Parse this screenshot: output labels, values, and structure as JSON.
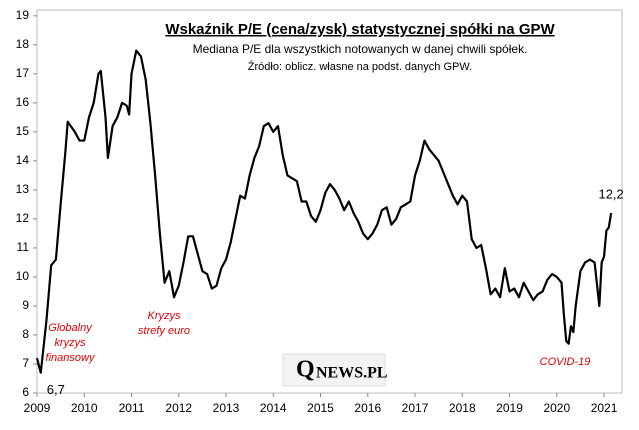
{
  "chart_data": {
    "type": "line",
    "title": "Wskaźnik P/E (cena/zysk) statystycznej spółki na GPW",
    "subtitle": "Mediana P/E dla wszystkich notowanych w danej chwili spółek.",
    "source": "Źródło: oblicz. własne na podst. danych GPW.",
    "annotations": [
      [
        "Globalny",
        "kryzys",
        "finansowy"
      ],
      [
        "Kryzys",
        "strefy euro"
      ],
      [
        "COVID-19"
      ]
    ],
    "annotation_color": "#e00000",
    "logo": {
      "initial": "Q",
      "rest": "NEWS.PL"
    },
    "xlim": [
      2009,
      2021.38
    ],
    "xticks": [
      2009,
      2010,
      2011,
      2012,
      2013,
      2014,
      2015,
      2016,
      2017,
      2018,
      2019,
      2020,
      2021
    ],
    "ylim": [
      6,
      19.2
    ],
    "yticks": [
      6,
      7,
      8,
      9,
      10,
      11,
      12,
      13,
      14,
      15,
      16,
      17,
      18,
      19
    ],
    "grid": false,
    "series": [
      {
        "color": "#000000",
        "x": [
          2009.0,
          2009.08,
          2009.2,
          2009.3,
          2009.4,
          2009.5,
          2009.6,
          2009.65,
          2009.8,
          2009.9,
          2010.0,
          2010.1,
          2010.2,
          2010.3,
          2010.35,
          2010.45,
          2010.5,
          2010.6,
          2010.7,
          2010.8,
          2010.9,
          2010.95,
          2011.0,
          2011.1,
          2011.2,
          2011.3,
          2011.4,
          2011.5,
          2011.6,
          2011.7,
          2011.8,
          2011.9,
          2012.0,
          2012.1,
          2012.2,
          2012.3,
          2012.4,
          2012.5,
          2012.6,
          2012.7,
          2012.8,
          2012.9,
          2013.0,
          2013.1,
          2013.2,
          2013.3,
          2013.4,
          2013.5,
          2013.6,
          2013.7,
          2013.8,
          2013.9,
          2014.0,
          2014.1,
          2014.2,
          2014.3,
          2014.4,
          2014.5,
          2014.6,
          2014.7,
          2014.8,
          2014.9,
          2015.0,
          2015.1,
          2015.2,
          2015.3,
          2015.4,
          2015.5,
          2015.6,
          2015.7,
          2015.8,
          2015.9,
          2016.0,
          2016.1,
          2016.2,
          2016.3,
          2016.4,
          2016.5,
          2016.6,
          2016.7,
          2016.8,
          2016.9,
          2017.0,
          2017.1,
          2017.2,
          2017.3,
          2017.4,
          2017.5,
          2017.6,
          2017.7,
          2017.8,
          2017.9,
          2018.0,
          2018.1,
          2018.2,
          2018.3,
          2018.4,
          2018.5,
          2018.6,
          2018.7,
          2018.8,
          2018.9,
          2019.0,
          2019.1,
          2019.2,
          2019.3,
          2019.4,
          2019.5,
          2019.6,
          2019.7,
          2019.8,
          2019.9,
          2020.0,
          2020.1,
          2020.15,
          2020.2,
          2020.25,
          2020.3,
          2020.35,
          2020.4,
          2020.5,
          2020.6,
          2020.7,
          2020.8,
          2020.9,
          2020.95,
          2021.0,
          2021.05,
          2021.1,
          2021.15
        ],
        "values": [
          7.2,
          6.7,
          8.5,
          10.4,
          10.6,
          12.5,
          14.3,
          15.35,
          15.0,
          14.7,
          14.7,
          15.5,
          16.0,
          17.0,
          17.1,
          15.5,
          14.1,
          15.2,
          15.5,
          16.0,
          15.9,
          15.6,
          17.0,
          17.8,
          17.6,
          16.8,
          15.3,
          13.5,
          11.5,
          9.8,
          10.2,
          9.3,
          9.7,
          10.5,
          11.4,
          11.4,
          10.8,
          10.2,
          10.1,
          9.6,
          9.7,
          10.3,
          10.6,
          11.2,
          12.0,
          12.8,
          12.7,
          13.5,
          14.1,
          14.5,
          15.2,
          15.3,
          15.0,
          15.2,
          14.2,
          13.5,
          13.4,
          13.3,
          12.6,
          12.6,
          12.1,
          11.9,
          12.3,
          12.9,
          13.2,
          13.0,
          12.7,
          12.3,
          12.6,
          12.2,
          11.9,
          11.5,
          11.3,
          11.5,
          11.8,
          12.3,
          12.4,
          11.8,
          12.0,
          12.4,
          12.5,
          12.6,
          13.5,
          14.0,
          14.7,
          14.4,
          14.2,
          14.0,
          13.6,
          13.2,
          12.8,
          12.5,
          12.8,
          12.6,
          11.3,
          11.0,
          11.1,
          10.3,
          9.4,
          9.6,
          9.3,
          10.3,
          9.5,
          9.6,
          9.3,
          9.8,
          9.5,
          9.2,
          9.4,
          9.5,
          9.9,
          10.1,
          10.0,
          9.8,
          8.7,
          7.8,
          7.7,
          8.3,
          8.1,
          9.0,
          10.2,
          10.5,
          10.6,
          10.5,
          9.0,
          10.5,
          10.7,
          11.6,
          11.7,
          12.2
        ],
        "value_labels": [
          null,
          "6,7",
          null,
          null,
          null,
          null,
          null,
          null,
          null,
          null,
          null,
          null,
          null,
          null,
          null,
          null,
          null,
          null,
          null,
          null,
          null,
          null,
          null,
          null,
          null,
          null,
          null,
          null,
          null,
          null,
          null,
          null,
          null,
          null,
          null,
          null,
          null,
          null,
          null,
          null,
          null,
          null,
          null,
          null,
          null,
          null,
          null,
          null,
          null,
          null,
          null,
          null,
          null,
          null,
          null,
          null,
          null,
          null,
          null,
          null,
          null,
          null,
          null,
          null,
          null,
          null,
          null,
          null,
          null,
          null,
          null,
          null,
          null,
          null,
          null,
          null,
          null,
          null,
          null,
          null,
          null,
          null,
          null,
          null,
          null,
          null,
          null,
          null,
          null,
          null,
          null,
          null,
          null,
          null,
          null,
          null,
          null,
          null,
          null,
          null,
          null,
          null,
          null,
          null,
          null,
          null,
          null,
          null,
          null,
          null,
          null,
          null,
          null,
          null,
          null,
          null,
          null,
          null,
          null,
          null,
          null,
          null,
          null,
          null,
          null,
          null,
          null,
          null,
          null,
          "12,2"
        ]
      }
    ]
  }
}
